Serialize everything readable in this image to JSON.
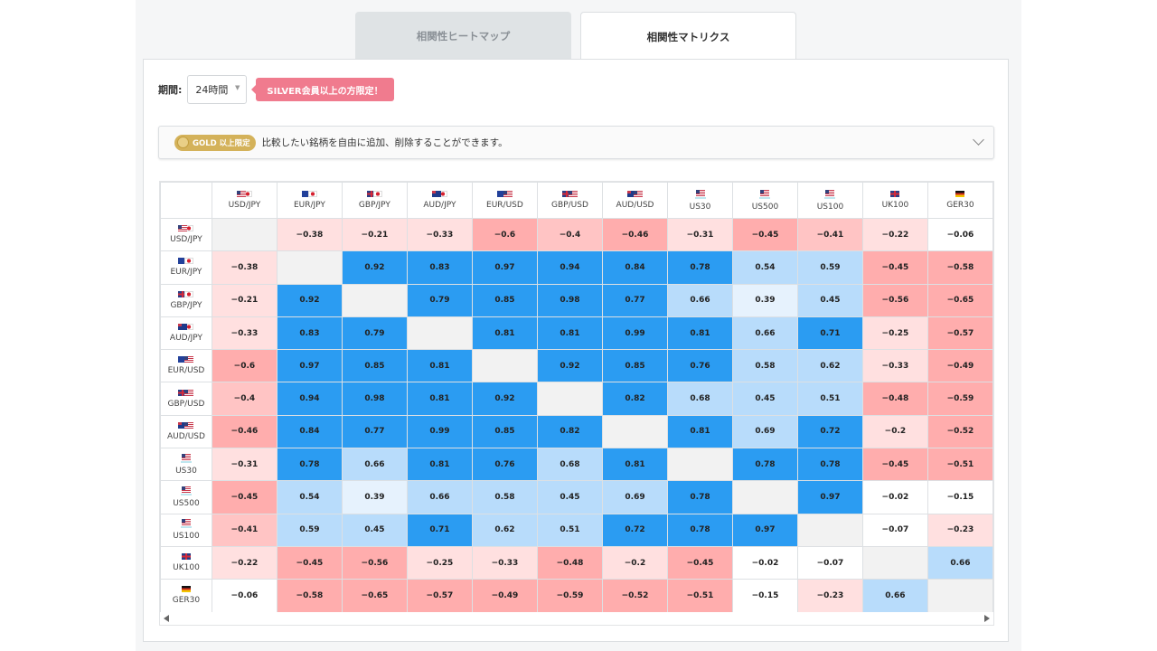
{
  "tabs": [
    {
      "label": "相関性ヒートマップ",
      "active": false
    },
    {
      "label": "相関性マトリクス",
      "active": true
    }
  ],
  "period": {
    "label": "期間:",
    "value": "24時間"
  },
  "silver_badge": "SILVER会員以上の方限定！",
  "gold_bar": {
    "badge": "GOLD 以上限定",
    "text": "比較したい銘柄を自由に追加、削除することができます。"
  },
  "colors": {
    "strong_positive": "#2b9cf2",
    "positive": "#b8dcfb",
    "negative": "#ffadad",
    "accent_pink": "#f07b8e",
    "gold": "#d4b25a"
  },
  "symbols": [
    {
      "name": "USD/JPY",
      "flags": [
        "US",
        "JP"
      ]
    },
    {
      "name": "EUR/JPY",
      "flags": [
        "EU",
        "JP"
      ]
    },
    {
      "name": "GBP/JPY",
      "flags": [
        "GB",
        "JP"
      ]
    },
    {
      "name": "AUD/JPY",
      "flags": [
        "AU",
        "JP"
      ]
    },
    {
      "name": "EUR/USD",
      "flags": [
        "EU",
        "US"
      ]
    },
    {
      "name": "GBP/USD",
      "flags": [
        "GB",
        "US"
      ]
    },
    {
      "name": "AUD/USD",
      "flags": [
        "AU",
        "US"
      ]
    },
    {
      "name": "US30",
      "flags": [
        "US"
      ]
    },
    {
      "name": "US500",
      "flags": [
        "US"
      ]
    },
    {
      "name": "US100",
      "flags": [
        "US"
      ]
    },
    {
      "name": "UK100",
      "flags": [
        "GB"
      ]
    },
    {
      "name": "GER30",
      "flags": [
        "DE"
      ]
    }
  ],
  "matrix": [
    [
      null,
      -0.38,
      -0.21,
      -0.33,
      -0.6,
      -0.4,
      -0.46,
      -0.31,
      -0.45,
      -0.41,
      -0.22,
      -0.06
    ],
    [
      -0.38,
      null,
      0.92,
      0.83,
      0.97,
      0.94,
      0.84,
      0.78,
      0.54,
      0.59,
      -0.45,
      -0.58
    ],
    [
      -0.21,
      0.92,
      null,
      0.79,
      0.85,
      0.98,
      0.77,
      0.66,
      0.39,
      0.45,
      -0.56,
      -0.65
    ],
    [
      -0.33,
      0.83,
      0.79,
      null,
      0.81,
      0.81,
      0.99,
      0.81,
      0.66,
      0.71,
      -0.25,
      -0.57
    ],
    [
      -0.6,
      0.97,
      0.85,
      0.81,
      null,
      0.92,
      0.85,
      0.76,
      0.58,
      0.62,
      -0.33,
      -0.49
    ],
    [
      -0.4,
      0.94,
      0.98,
      0.81,
      0.92,
      null,
      0.82,
      0.68,
      0.45,
      0.51,
      -0.48,
      -0.59
    ],
    [
      -0.46,
      0.84,
      0.77,
      0.99,
      0.85,
      0.82,
      null,
      0.81,
      0.69,
      0.72,
      -0.2,
      -0.52
    ],
    [
      -0.31,
      0.78,
      0.66,
      0.81,
      0.76,
      0.68,
      0.81,
      null,
      0.78,
      0.78,
      -0.45,
      -0.51
    ],
    [
      -0.45,
      0.54,
      0.39,
      0.66,
      0.58,
      0.45,
      0.69,
      0.78,
      null,
      0.97,
      -0.02,
      -0.15
    ],
    [
      -0.41,
      0.59,
      0.45,
      0.71,
      0.62,
      0.51,
      0.72,
      0.78,
      0.97,
      null,
      -0.07,
      -0.23
    ],
    [
      -0.22,
      -0.45,
      -0.56,
      -0.25,
      -0.33,
      -0.48,
      -0.2,
      -0.45,
      -0.02,
      -0.07,
      null,
      0.66
    ],
    [
      -0.06,
      -0.58,
      -0.65,
      -0.57,
      -0.49,
      -0.59,
      -0.52,
      -0.51,
      -0.15,
      -0.23,
      0.66,
      null
    ]
  ]
}
